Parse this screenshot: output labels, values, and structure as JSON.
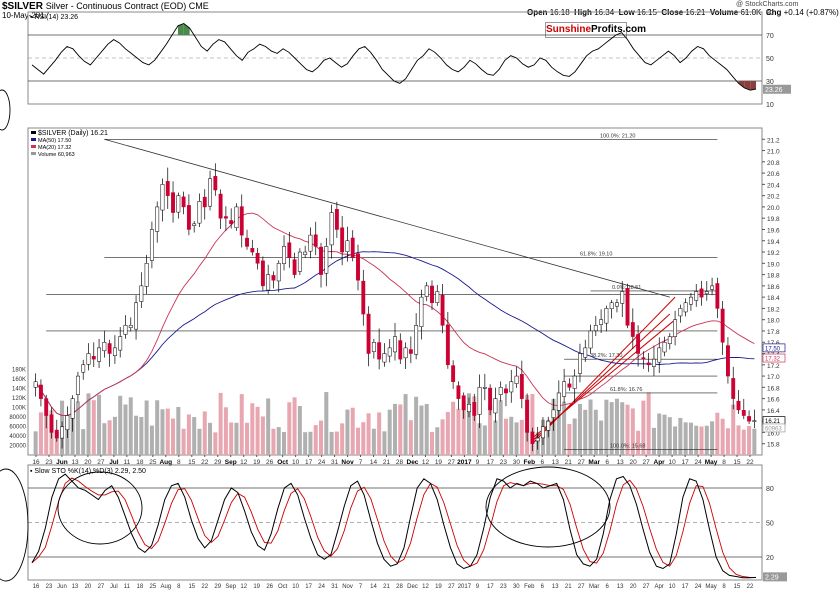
{
  "header": {
    "symbol": "$SILVER",
    "description": "Silver - Continuous Contract (EOD)  CME",
    "date": "10-May-2017",
    "open_label": "Open",
    "open_value": "16.18",
    "high_label": "High",
    "high_value": "16.34",
    "low_label": "Low",
    "low_value": "16.15",
    "close_label": "Close",
    "close_value": "16.21",
    "volume_label": "Volume",
    "volume_value": "61.0K",
    "chg_label": "Chg",
    "chg_value": "+0.14 (+0.87%)",
    "credit": "@ StockCharts.com"
  },
  "brand": {
    "part1": "Sunshine",
    "part2": "Profits.com",
    "color1": "#cc0000",
    "color2": "#000000"
  },
  "colors": {
    "up": "#ffffff",
    "down": "#cc0033",
    "ma50": "#1a1a8c",
    "ma20": "#cc3355",
    "vol_up": "#b0b0b0",
    "vol_down": "#e8a6b0",
    "rsi_high_fill": "#4a8a4a",
    "rsi_low_fill": "#8b4040",
    "stoch_k": "#000000",
    "stoch_d": "#cc0000",
    "fib": "#222222"
  },
  "chart_data": [
    {
      "type": "line",
      "title": "RSI(14) 23.26",
      "legend": "RSI(14) 23.26",
      "ylim": [
        10,
        90
      ],
      "y_ticks": [
        "90",
        "70",
        "50",
        "30",
        "10"
      ],
      "last_label": "23.26",
      "values": [
        44,
        40,
        36,
        42,
        48,
        55,
        60,
        58,
        52,
        47,
        44,
        50,
        56,
        62,
        66,
        63,
        58,
        54,
        50,
        46,
        44,
        48,
        55,
        62,
        70,
        78,
        80,
        76,
        68,
        60,
        56,
        62,
        66,
        64,
        58,
        52,
        48,
        55,
        58,
        62,
        60,
        56,
        54,
        58,
        55,
        50,
        45,
        40,
        38,
        42,
        48,
        50,
        46,
        42,
        45,
        52,
        58,
        60,
        55,
        48,
        40,
        35,
        30,
        28,
        32,
        40,
        48,
        52,
        58,
        55,
        50,
        44,
        40,
        38,
        42,
        48,
        45,
        40,
        36,
        35,
        40,
        48,
        52,
        50,
        45,
        42,
        44,
        50,
        48,
        42,
        38,
        35,
        34,
        38,
        45,
        52,
        56,
        58,
        62,
        66,
        70,
        72,
        66,
        58,
        52,
        46,
        44,
        48,
        52,
        56,
        52,
        46,
        50,
        56,
        60,
        58,
        52,
        48,
        44,
        40,
        34,
        28,
        24,
        22,
        23
      ]
    },
    {
      "type": "candlestick",
      "title": "$SILVER (Daily) 16.21",
      "legend": [
        "$SILVER (Daily) 16.21",
        "MA(50) 17.50",
        "MA(20) 17.32",
        "Volume 60,963"
      ],
      "ylim": [
        15.6,
        21.4
      ],
      "y_ticks": [
        "21.2",
        "21.0",
        "20.8",
        "20.6",
        "20.4",
        "20.2",
        "20.0",
        "19.8",
        "19.6",
        "19.4",
        "19.2",
        "19.0",
        "18.8",
        "18.6",
        "18.4",
        "18.2",
        "18.0",
        "17.8",
        "17.6",
        "17.4",
        "17.2",
        "17.0",
        "16.8",
        "16.6",
        "16.4",
        "16.2",
        "16.0",
        "15.8"
      ],
      "volume_ticks": [
        "180K",
        "160K",
        "140K",
        "120K",
        "100K",
        "80000",
        "60000",
        "40000",
        "20000"
      ],
      "right_labels": [
        "17.50",
        "17.32",
        "16.21",
        "60963"
      ],
      "x_labels": [
        "16",
        "23",
        "Jun",
        "13",
        "20",
        "27",
        "Jul",
        "11",
        "18",
        "25",
        "Aug",
        "8",
        "15",
        "22",
        "29",
        "Sep",
        "12",
        "19",
        "26",
        "Oct",
        "10",
        "17",
        "24",
        "31",
        "Nov",
        "7",
        "14",
        "21",
        "28",
        "Dec",
        "12",
        "19",
        "27",
        "2017",
        "9",
        "17",
        "23",
        "30",
        "Feb",
        "6",
        "13",
        "21",
        "27",
        "Mar",
        "6",
        "13",
        "20",
        "27",
        "Apr",
        "10",
        "17",
        "24",
        "May",
        "8",
        "15",
        "22"
      ],
      "closes": [
        16.9,
        16.6,
        16.3,
        16.0,
        15.9,
        16.1,
        16.3,
        16.6,
        17.0,
        17.2,
        17.4,
        17.3,
        17.5,
        17.6,
        17.4,
        17.5,
        17.7,
        17.9,
        17.9,
        18.3,
        18.6,
        19.0,
        19.6,
        20.0,
        20.4,
        20.2,
        19.9,
        20.2,
        20.0,
        19.6,
        19.7,
        20.1,
        20.0,
        20.5,
        20.3,
        19.8,
        19.8,
        19.7,
        20.0,
        19.5,
        19.3,
        19.2,
        19.0,
        18.6,
        18.8,
        18.7,
        19.0,
        19.3,
        19.1,
        18.8,
        19.2,
        19.2,
        19.5,
        19.3,
        18.8,
        19.3,
        19.9,
        19.6,
        19.2,
        19.4,
        19.1,
        18.7,
        18.1,
        17.4,
        17.6,
        17.3,
        17.4,
        17.5,
        17.7,
        17.3,
        17.5,
        17.4,
        17.9,
        18.4,
        18.6,
        18.3,
        18.5,
        17.9,
        17.2,
        16.9,
        16.6,
        16.4,
        16.5,
        16.3,
        16.8,
        16.8,
        16.4,
        16.6,
        16.8,
        16.7,
        16.9,
        17.0,
        16.6,
        16.0,
        15.8,
        15.9,
        16.1,
        16.2,
        16.4,
        16.7,
        16.9,
        16.8,
        17.0,
        17.4,
        17.5,
        17.8,
        17.9,
        18.0,
        18.2,
        18.3,
        18.3,
        18.5,
        17.9,
        17.7,
        17.4,
        17.3,
        17.2,
        17.3,
        17.5,
        17.6,
        17.7,
        18.0,
        18.2,
        18.3,
        18.4,
        18.5,
        18.4,
        18.5,
        18.6,
        18.2,
        17.6,
        17.0,
        16.6,
        16.4,
        16.3,
        16.2,
        16.21
      ]
    },
    {
      "type": "line",
      "title": "Slow STO %K(14) %D(3) 2.29, 2.50",
      "legend": "Slow STO %K(14),%D(3) 2.29, 2.50",
      "ylim": [
        0,
        100
      ],
      "y_ticks": [
        "80",
        "50",
        "20"
      ],
      "last_label": "2.29",
      "k_values": [
        15,
        25,
        45,
        72,
        88,
        92,
        86,
        80,
        78,
        74,
        70,
        78,
        82,
        72,
        56,
        40,
        28,
        24,
        30,
        48,
        70,
        82,
        84,
        72,
        52,
        36,
        28,
        34,
        52,
        70,
        80,
        76,
        60,
        42,
        30,
        26,
        40,
        62,
        80,
        84,
        74,
        54,
        36,
        22,
        18,
        22,
        42,
        64,
        82,
        86,
        74,
        52,
        32,
        18,
        12,
        14,
        28,
        55,
        80,
        88,
        84,
        70,
        48,
        28,
        14,
        10,
        12,
        22,
        45,
        72,
        88,
        86,
        80,
        84,
        82,
        86,
        84,
        80,
        82,
        84,
        70,
        44,
        22,
        14,
        12,
        18,
        40,
        70,
        88,
        90,
        82,
        66,
        44,
        24,
        12,
        10,
        14,
        40,
        72,
        88,
        86,
        70,
        44,
        20,
        8,
        4,
        3,
        2,
        2,
        2.29
      ]
    }
  ]
}
